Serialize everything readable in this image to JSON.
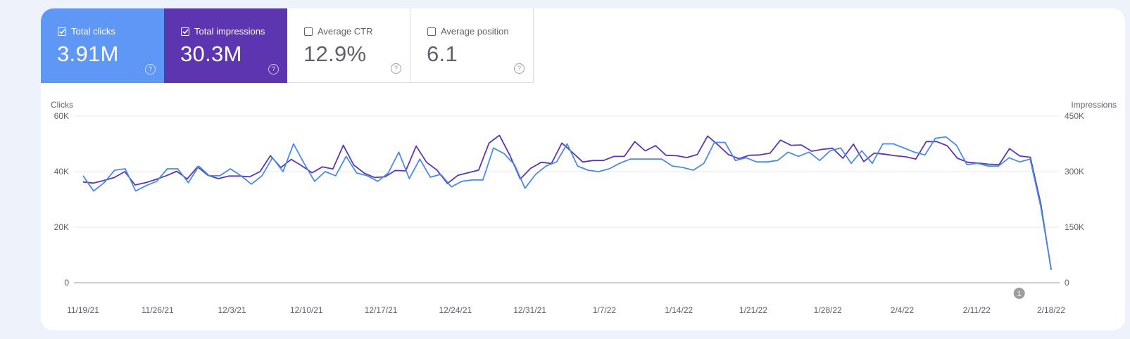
{
  "metrics": [
    {
      "label": "Total clicks",
      "value": "3.91M",
      "checked": true,
      "color": "#5e97f6",
      "help": "?"
    },
    {
      "label": "Total impressions",
      "value": "30.3M",
      "checked": true,
      "color": "#5e35b1",
      "help": "?"
    },
    {
      "label": "Average CTR",
      "value": "12.9%",
      "checked": false,
      "color": "#ffffff",
      "help": "?"
    },
    {
      "label": "Average position",
      "value": "6.1",
      "checked": false,
      "color": "#ffffff",
      "help": "?"
    }
  ],
  "annotation": {
    "label": "1",
    "x": "2/15/22"
  },
  "chart_data": {
    "type": "line",
    "x_ticks": [
      "11/19/21",
      "11/26/21",
      "12/3/21",
      "12/10/21",
      "12/17/21",
      "12/24/21",
      "12/31/21",
      "1/7/22",
      "1/14/22",
      "1/21/22",
      "1/28/22",
      "2/4/22",
      "2/11/22",
      "2/18/22"
    ],
    "left_axis": {
      "label": "Clicks",
      "ticks": [
        "0",
        "20K",
        "40K",
        "60K"
      ],
      "ylim": [
        0,
        60000
      ]
    },
    "right_axis": {
      "label": "Impressions",
      "ticks": [
        "0",
        "150K",
        "300K",
        "450K"
      ],
      "ylim": [
        0,
        450000
      ]
    },
    "grid": true,
    "series": [
      {
        "axis": "left",
        "color": "#4a8cdf",
        "values": [
          38500,
          33000,
          36000,
          40500,
          41000,
          33000,
          35000,
          36500,
          41000,
          41000,
          36000,
          42000,
          38500,
          38500,
          41000,
          38500,
          35500,
          38500,
          45000,
          40000,
          50000,
          43000,
          36500,
          40000,
          38500,
          45500,
          39500,
          38500,
          36500,
          39500,
          47000,
          37500,
          44500,
          38000,
          39000,
          34500,
          36500,
          37000,
          37000,
          48500,
          46500,
          42500,
          34000,
          39000,
          42000,
          43500,
          50000,
          42000,
          40500,
          40000,
          41000,
          43000,
          44500,
          44500,
          44500,
          44500,
          42000,
          41500,
          40500,
          43000,
          50500,
          50500,
          44000,
          45000,
          43500,
          43500,
          44000,
          47000,
          45500,
          47000,
          44000,
          47500,
          48500,
          43000,
          47500,
          43000,
          50000,
          50000,
          48500,
          47000,
          46000,
          52000,
          52500,
          49500,
          42500,
          43000,
          42000,
          42000,
          45000,
          43500,
          44500,
          27500,
          5000
        ]
      },
      {
        "axis": "right",
        "color": "#5e35b1",
        "values": [
          272000,
          269000,
          276000,
          284000,
          300000,
          264000,
          270000,
          279000,
          289000,
          301000,
          280000,
          313000,
          290000,
          281000,
          288000,
          288000,
          286000,
          300000,
          343000,
          311000,
          333000,
          316000,
          297000,
          313000,
          307000,
          371000,
          318000,
          296000,
          284000,
          286000,
          303000,
          302000,
          369000,
          325000,
          304000,
          268000,
          290000,
          297000,
          304000,
          377000,
          398000,
          344000,
          280000,
          309000,
          325000,
          322000,
          377000,
          352000,
          326000,
          330000,
          330000,
          341000,
          341000,
          381000,
          356000,
          370000,
          344000,
          343000,
          338000,
          346000,
          396000,
          372000,
          346000,
          335000,
          344000,
          345000,
          350000,
          385000,
          371000,
          372000,
          355000,
          360000,
          363000,
          336000,
          374000,
          327000,
          350000,
          347000,
          343000,
          340000,
          334000,
          381000,
          381000,
          370000,
          336000,
          325000,
          323000,
          320000,
          319000,
          362000,
          342000,
          339000,
          214000,
          35000
        ]
      }
    ]
  }
}
